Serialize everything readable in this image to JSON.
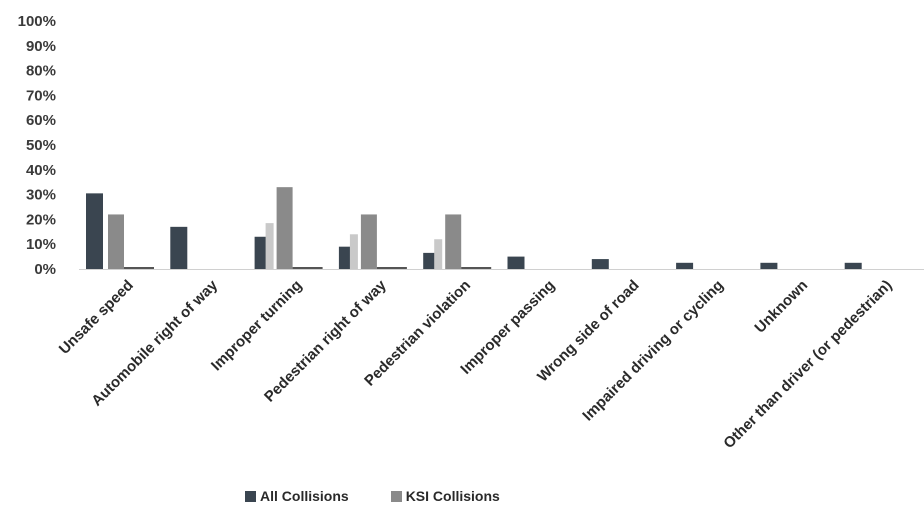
{
  "chart_data": {
    "type": "bar",
    "title": "",
    "xlabel": "",
    "ylabel": "",
    "ylim": [
      0,
      100
    ],
    "yticks": [
      "0%",
      "10%",
      "20%",
      "30%",
      "40%",
      "50%",
      "60%",
      "70%",
      "80%",
      "90%",
      "100%"
    ],
    "categories": [
      "Unsafe speed",
      "Automobile right of way",
      "Improper turning",
      "Pedestrian right of way",
      "Pedestrian violation",
      "Improper passing",
      "Wrong side of road",
      "Impaired driving or cycling",
      "Unknown",
      "Other than driver (or pedestrian)"
    ],
    "series": [
      {
        "name": "All Collisions",
        "values": [
          30.5,
          17,
          13,
          9,
          6.5,
          5,
          4,
          2.5,
          2.5,
          2.5
        ],
        "color": "#3a4550"
      },
      {
        "name": "KSI Collisions",
        "values": [
          22,
          0,
          33,
          22,
          22,
          0,
          0,
          0,
          0,
          0
        ],
        "color": "#8a8a8a"
      },
      {
        "values": [
          0,
          0,
          18.5,
          14,
          12,
          0,
          0,
          0,
          0,
          0
        ],
        "color": "#c9c9c9"
      }
    ],
    "grid": false,
    "legend": "bottom"
  },
  "legend": {
    "all_label": "All Collisions",
    "ksi_label": "KSI Collisions",
    "all_color": "#3a4550",
    "ksi_color": "#8a8a8a"
  }
}
